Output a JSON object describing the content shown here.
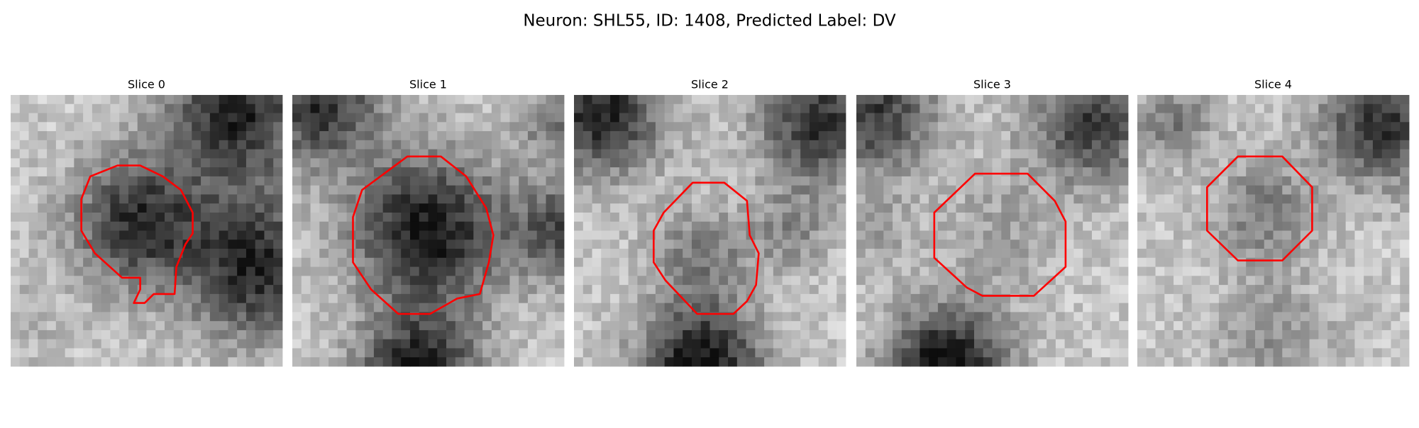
{
  "title": "Neuron: SHL55, ID: 1408, Predicted Label: DV",
  "panels": [
    {
      "title": "Slice 0"
    },
    {
      "title": "Slice 1"
    },
    {
      "title": "Slice 2"
    },
    {
      "title": "Slice 3"
    },
    {
      "title": "Slice 4"
    }
  ]
}
